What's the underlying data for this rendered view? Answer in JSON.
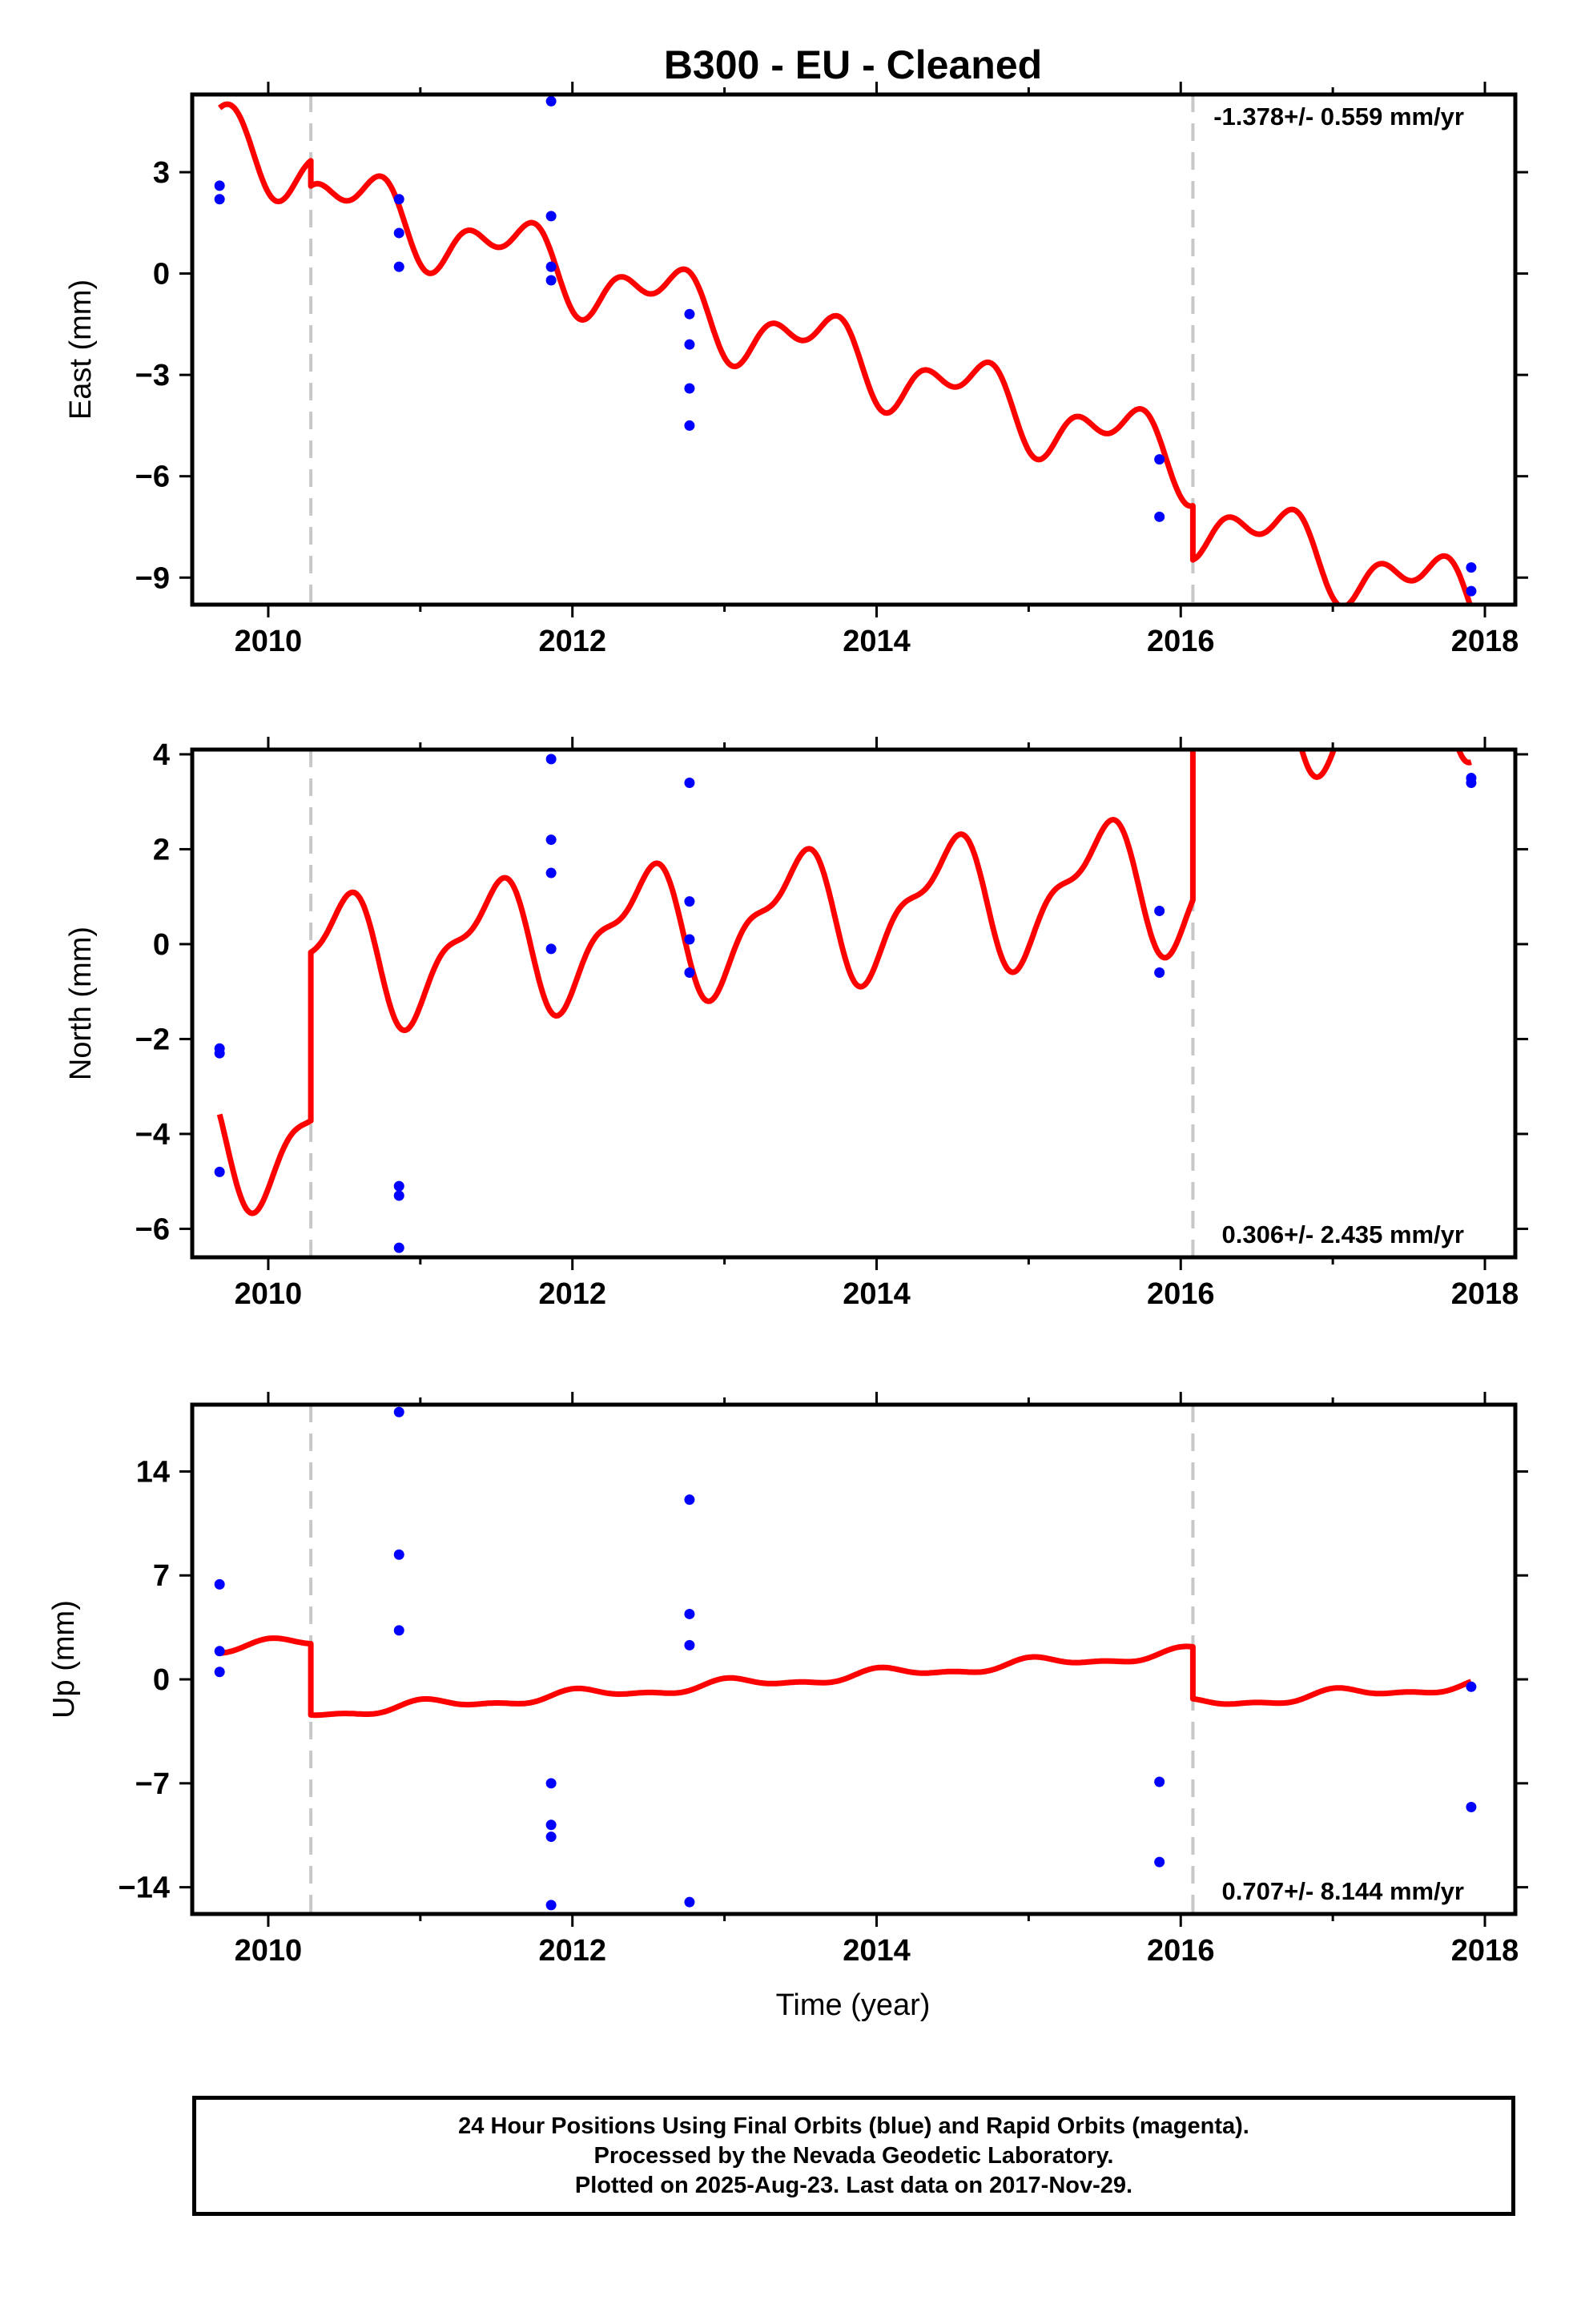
{
  "figure_title": "B300  - EU - Cleaned",
  "xlabel": "Time (year)",
  "footer": {
    "line1": "24 Hour Positions Using Final Orbits (blue) and Rapid Orbits (magenta).",
    "line2": "Processed by the Nevada Geodetic Laboratory.",
    "line3": "Plotted on 2025-Aug-23. Last data on 2017-Nov-29."
  },
  "colors": {
    "points": "#0000ff",
    "model": "#ff0000",
    "breaks": "#c8c8c8",
    "frame": "#000000"
  },
  "chart_data": [
    {
      "type": "scatter",
      "panel": "east",
      "ylabel": "East (mm)",
      "annotation": "-1.378+/- 0.559 mm/yr",
      "xlim": [
        2009.5,
        2018.2
      ],
      "ylim": [
        -9.8,
        5.3
      ],
      "xticks": [
        2010,
        2012,
        2014,
        2016,
        2018
      ],
      "yticks": [
        3,
        0,
        -3,
        -6,
        -9
      ],
      "ytick_labels": [
        "3",
        "0",
        "−3",
        "−6",
        "−9"
      ],
      "breaks": [
        2010.28,
        2016.08
      ],
      "points": [
        {
          "x": 2009.68,
          "y": 2.6
        },
        {
          "x": 2009.68,
          "y": 2.2
        },
        {
          "x": 2010.86,
          "y": 2.2
        },
        {
          "x": 2010.86,
          "y": 1.2
        },
        {
          "x": 2010.86,
          "y": 0.2
        },
        {
          "x": 2011.86,
          "y": 5.1
        },
        {
          "x": 2011.86,
          "y": 1.7
        },
        {
          "x": 2011.86,
          "y": 0.2
        },
        {
          "x": 2011.86,
          "y": -0.2
        },
        {
          "x": 2012.77,
          "y": -1.2
        },
        {
          "x": 2012.77,
          "y": -2.1
        },
        {
          "x": 2012.77,
          "y": -3.4
        },
        {
          "x": 2012.77,
          "y": -4.5
        },
        {
          "x": 2015.86,
          "y": -5.5
        },
        {
          "x": 2015.86,
          "y": -7.2
        },
        {
          "x": 2017.91,
          "y": -8.7
        },
        {
          "x": 2017.91,
          "y": -9.4
        }
      ],
      "model": {
        "segments": [
          {
            "x0": 2009.68,
            "x1": 2010.28,
            "offset": 3.55
          },
          {
            "x0": 2010.28,
            "x1": 2016.08,
            "offset": 2.8
          },
          {
            "x0": 2016.08,
            "x1": 2017.91,
            "offset": 1.2
          }
        ],
        "rate": -1.378,
        "annual_cos": -0.6,
        "annual_sin": -0.55,
        "semiannual_cos": -0.55,
        "semiannual_sin": -0.25
      }
    },
    {
      "type": "scatter",
      "panel": "north",
      "ylabel": "North (mm)",
      "annotation": "0.306+/- 2.435 mm/yr",
      "xlim": [
        2009.5,
        2018.2
      ],
      "ylim": [
        -6.6,
        4.1
      ],
      "xticks": [
        2010,
        2012,
        2014,
        2016,
        2018
      ],
      "yticks": [
        4,
        2,
        0,
        -2,
        -4,
        -6
      ],
      "ytick_labels": [
        "4",
        "2",
        "0",
        "−2",
        "−4",
        "−6"
      ],
      "breaks": [
        2010.28,
        2016.08
      ],
      "points": [
        {
          "x": 2009.68,
          "y": -2.2
        },
        {
          "x": 2009.68,
          "y": -2.3
        },
        {
          "x": 2009.68,
          "y": -4.8
        },
        {
          "x": 2010.86,
          "y": -5.1
        },
        {
          "x": 2010.86,
          "y": -5.3
        },
        {
          "x": 2010.86,
          "y": -6.4
        },
        {
          "x": 2011.86,
          "y": 3.9
        },
        {
          "x": 2011.86,
          "y": 2.2
        },
        {
          "x": 2011.86,
          "y": 1.5
        },
        {
          "x": 2011.86,
          "y": -0.1
        },
        {
          "x": 2012.77,
          "y": 3.4
        },
        {
          "x": 2012.77,
          "y": 0.9
        },
        {
          "x": 2012.77,
          "y": 0.1
        },
        {
          "x": 2012.77,
          "y": -0.6
        },
        {
          "x": 2015.86,
          "y": 0.7
        },
        {
          "x": 2015.86,
          "y": -0.6
        },
        {
          "x": 2017.91,
          "y": 3.5
        },
        {
          "x": 2017.91,
          "y": 3.4
        }
      ],
      "model": {
        "segments": [
          {
            "x0": 2009.68,
            "x1": 2010.28,
            "offset": -4.05
          },
          {
            "x0": 2010.28,
            "x1": 2016.08,
            "offset": -0.5
          },
          {
            "x0": 2016.08,
            "x1": 2017.91,
            "offset": 3.0
          }
        ],
        "rate": 0.306,
        "annual_cos": -1.2,
        "annual_sin": 0.3,
        "semiannual_cos": 0.1,
        "semiannual_sin": 0.5
      }
    },
    {
      "type": "scatter",
      "panel": "up",
      "ylabel": "Up (mm)",
      "annotation": "0.707+/- 8.144 mm/yr",
      "xlim": [
        2009.5,
        2018.2
      ],
      "ylim": [
        -15.8,
        18.5
      ],
      "xticks": [
        2010,
        2012,
        2014,
        2016,
        2018
      ],
      "yticks": [
        14,
        7,
        0,
        -7,
        -14
      ],
      "ytick_labels": [
        "14",
        "7",
        "0",
        "−7",
        "−14"
      ],
      "breaks": [
        2010.28,
        2016.08
      ],
      "points": [
        {
          "x": 2009.68,
          "y": 6.4
        },
        {
          "x": 2009.68,
          "y": 1.9
        },
        {
          "x": 2009.68,
          "y": 0.5
        },
        {
          "x": 2010.86,
          "y": 18.0
        },
        {
          "x": 2010.86,
          "y": 8.4
        },
        {
          "x": 2010.86,
          "y": 3.3
        },
        {
          "x": 2011.86,
          "y": -7.0
        },
        {
          "x": 2011.86,
          "y": -9.8
        },
        {
          "x": 2011.86,
          "y": -10.6
        },
        {
          "x": 2011.86,
          "y": -15.2
        },
        {
          "x": 2012.77,
          "y": 12.1
        },
        {
          "x": 2012.77,
          "y": 4.4
        },
        {
          "x": 2012.77,
          "y": 2.3
        },
        {
          "x": 2012.77,
          "y": -15.0
        },
        {
          "x": 2015.86,
          "y": -6.9
        },
        {
          "x": 2015.86,
          "y": -12.3
        },
        {
          "x": 2017.91,
          "y": -0.5
        },
        {
          "x": 2017.91,
          "y": -8.6
        }
      ],
      "model": {
        "segments": [
          {
            "x0": 2009.68,
            "x1": 2010.28,
            "offset": 2.3
          },
          {
            "x0": 2010.28,
            "x1": 2016.08,
            "offset": -2.5
          },
          {
            "x0": 2016.08,
            "x1": 2017.91,
            "offset": -6.0
          }
        ],
        "rate": 0.707,
        "annual_cos": 0.3,
        "annual_sin": 0.1,
        "semiannual_cos": 0.15,
        "semiannual_sin": 0.0
      }
    }
  ]
}
